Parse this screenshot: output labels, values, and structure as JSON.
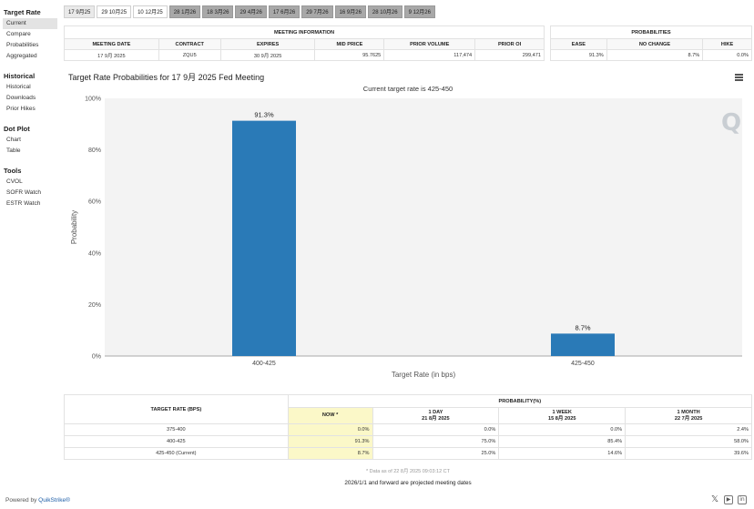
{
  "sidebar": {
    "sections": [
      {
        "title": "Target Rate",
        "items": [
          "Current",
          "Compare",
          "Probabilities",
          "Aggregated"
        ],
        "active": 0
      },
      {
        "title": "Historical",
        "items": [
          "Historical",
          "Downloads",
          "Prior Hikes"
        ],
        "active": -1
      },
      {
        "title": "Dot Plot",
        "items": [
          "Chart",
          "Table"
        ],
        "active": -1
      },
      {
        "title": "Tools",
        "items": [
          "CVOL",
          "SOFR Watch",
          "ESTR Watch"
        ],
        "active": -1
      }
    ]
  },
  "tabs": [
    {
      "label": "17 9月25",
      "style": "sel"
    },
    {
      "label": "29 10月25",
      "style": "light"
    },
    {
      "label": "10 12月25",
      "style": "light"
    },
    {
      "label": "28 1月26",
      "style": "dark"
    },
    {
      "label": "18 3月26",
      "style": "dark"
    },
    {
      "label": "29 4月26",
      "style": "dark"
    },
    {
      "label": "17 6月26",
      "style": "dark"
    },
    {
      "label": "29 7月26",
      "style": "dark"
    },
    {
      "label": "16 9月26",
      "style": "dark"
    },
    {
      "label": "28 10月26",
      "style": "dark"
    },
    {
      "label": "9 12月26",
      "style": "dark"
    }
  ],
  "meeting_info": {
    "header": "MEETING INFORMATION",
    "columns": [
      "MEETING DATE",
      "CONTRACT",
      "EXPIRES",
      "MID PRICE",
      "PRIOR VOLUME",
      "PRIOR OI"
    ],
    "values": [
      "17 9月 2025",
      "ZQU5",
      "30 9月 2025",
      "95.7625",
      "117,474",
      "299,471"
    ]
  },
  "probabilities": {
    "header": "PROBABILITIES",
    "columns": [
      "EASE",
      "NO CHANGE",
      "HIKE"
    ],
    "values": [
      "91.3%",
      "8.7%",
      "0.0%"
    ]
  },
  "chart_data": {
    "type": "bar",
    "title": "Target Rate Probabilities for 17 9月 2025 Fed Meeting",
    "subtitle": "Current target rate is 425-450",
    "categories": [
      "400-425",
      "425-450"
    ],
    "values": [
      91.3,
      8.7
    ],
    "data_labels": [
      "91.3%",
      "8.7%"
    ],
    "xlabel": "Target Rate (in bps)",
    "ylabel": "Probability",
    "ylim": [
      0,
      100
    ],
    "yticks": [
      0,
      20,
      40,
      60,
      80,
      100
    ],
    "ytick_labels": [
      "0%",
      "20%",
      "40%",
      "60%",
      "80%",
      "100%"
    ],
    "bar_color": "#2a7ab7",
    "grid": false
  },
  "bottom_table": {
    "rate_header": "TARGET RATE (BPS)",
    "prob_header": "PROBABILITY(%)",
    "cols": [
      {
        "line1": "NOW *",
        "line2": ""
      },
      {
        "line1": "1 DAY",
        "line2": "21 8月 2025"
      },
      {
        "line1": "1 WEEK",
        "line2": "15 8月 2025"
      },
      {
        "line1": "1 MONTH",
        "line2": "22 7月 2025"
      }
    ],
    "rows": [
      {
        "rate": "375-400",
        "vals": [
          "0.0%",
          "0.0%",
          "0.0%",
          "2.4%"
        ]
      },
      {
        "rate": "400-425",
        "vals": [
          "91.3%",
          "75.0%",
          "85.4%",
          "58.0%"
        ]
      },
      {
        "rate": "425-450 (Current)",
        "vals": [
          "8.7%",
          "25.0%",
          "14.6%",
          "39.6%"
        ]
      }
    ]
  },
  "footnote": "* Data as of 22 8月 2025 09:03:12 CT",
  "projection_note": "2026/1/1 and forward are projected meeting dates",
  "powered_by": {
    "prefix": "Powered by ",
    "brand": "QuikStrike®"
  },
  "chart_logo": "Q",
  "social_icons": [
    {
      "name": "x-icon",
      "glyph": "𝕏"
    },
    {
      "name": "youtube-icon",
      "glyph": "▶"
    },
    {
      "name": "linkedin-icon",
      "glyph": "in"
    }
  ]
}
